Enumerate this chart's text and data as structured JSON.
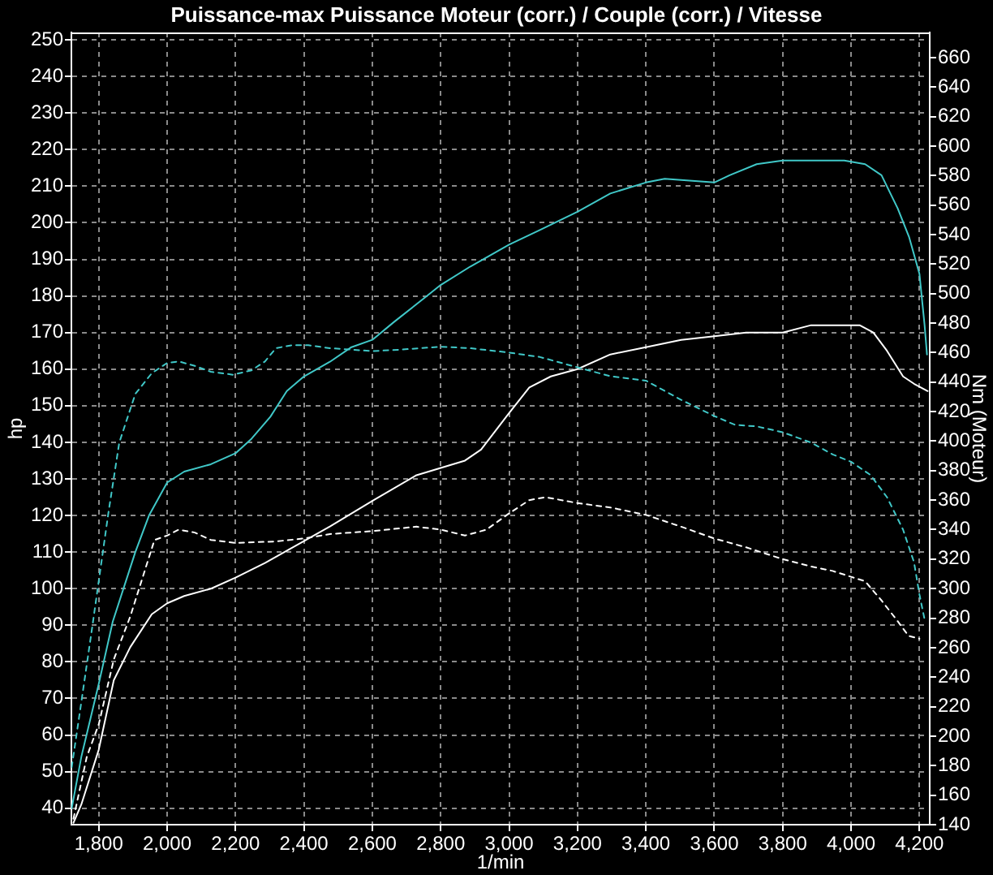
{
  "chart_data": {
    "type": "line",
    "title": "Puissance-max Puissance Moteur (corr.) / Couple (corr.) / Vitesse",
    "xlabel": "1/min",
    "ylabel": "hp",
    "y2label": "Nm (Moteur)",
    "xlim": [
      1720,
      4230
    ],
    "xticks": [
      {
        "value": 1800,
        "label": "1,800"
      },
      {
        "value": 2000,
        "label": "2,000"
      },
      {
        "value": 2200,
        "label": "2,200"
      },
      {
        "value": 2400,
        "label": "2,400"
      },
      {
        "value": 2600,
        "label": "2,600"
      },
      {
        "value": 2800,
        "label": "2,800"
      },
      {
        "value": 3000,
        "label": "3,000"
      },
      {
        "value": 3200,
        "label": "3,200"
      },
      {
        "value": 3400,
        "label": "3,400"
      },
      {
        "value": 3600,
        "label": "3,600"
      },
      {
        "value": 3800,
        "label": "3,800"
      },
      {
        "value": 4000,
        "label": "4,000"
      },
      {
        "value": 4200,
        "label": "4,200"
      }
    ],
    "ylim": [
      35.5,
      252
    ],
    "yticks": [
      40,
      50,
      60,
      70,
      80,
      90,
      100,
      110,
      120,
      130,
      140,
      150,
      160,
      170,
      180,
      190,
      200,
      210,
      220,
      230,
      240,
      250
    ],
    "y2lim": [
      140,
      677
    ],
    "y2ticks": [
      140,
      160,
      180,
      200,
      220,
      240,
      260,
      280,
      300,
      320,
      340,
      360,
      380,
      400,
      420,
      440,
      460,
      480,
      500,
      520,
      540,
      560,
      580,
      600,
      620,
      640,
      660
    ],
    "grid": true,
    "legend": false,
    "marker": "none",
    "series": [
      {
        "color": "#40c8c8",
        "line_style": "solid",
        "x": [
          1721,
          1749,
          1800,
          1841,
          1907,
          1947,
          2000,
          2050,
          2128,
          2200,
          2247,
          2302,
          2350,
          2400,
          2476,
          2539,
          2600,
          2665,
          2760,
          2800,
          2886,
          3000,
          3090,
          3200,
          3296,
          3400,
          3455,
          3600,
          3645,
          3724,
          3800,
          3980,
          4041,
          4089,
          4136,
          4170,
          4200,
          4215,
          4222
        ],
        "values": [
          40,
          54,
          74,
          91,
          110,
          120,
          129,
          132,
          134,
          137,
          141,
          147,
          154,
          158,
          162,
          166,
          168,
          173,
          180,
          183,
          188,
          194,
          198,
          203,
          208,
          211,
          212,
          211,
          213,
          216,
          217,
          217,
          216,
          213,
          204,
          196,
          186,
          172,
          164
        ]
      },
      {
        "color": "#40c8c8",
        "line_style": "dashed",
        "axis": "y2",
        "x": [
          1721,
          1749,
          1781,
          1828,
          1860,
          1907,
          1955,
          2000,
          2034,
          2081,
          2128,
          2192,
          2247,
          2286,
          2318,
          2365,
          2413,
          2476,
          2600,
          2681,
          2800,
          2886,
          3000,
          3090,
          3200,
          3296,
          3400,
          3503,
          3600,
          3661,
          3724,
          3800,
          3883,
          3946,
          4000,
          4057,
          4105,
          4152,
          4184,
          4200,
          4216
        ],
        "values": [
          179,
          223,
          274,
          351,
          399,
          432,
          446,
          453,
          454,
          451,
          447,
          445,
          448,
          454,
          463,
          465,
          465,
          463,
          461,
          462,
          464,
          463,
          460,
          457,
          450,
          444,
          441,
          428,
          417,
          411,
          410,
          406,
          399,
          391,
          386,
          377,
          362,
          340,
          318,
          296,
          278
        ]
      },
      {
        "color": "#ffffff",
        "line_style": "solid",
        "x": [
          1726,
          1749,
          1800,
          1844,
          1892,
          1955,
          2000,
          2050,
          2128,
          2200,
          2286,
          2400,
          2476,
          2600,
          2729,
          2800,
          2871,
          2918,
          3000,
          3059,
          3122,
          3200,
          3296,
          3400,
          3503,
          3600,
          3693,
          3800,
          3883,
          3946,
          4025,
          4065,
          4105,
          4152,
          4184,
          4224
        ],
        "values": [
          36,
          41,
          56,
          75,
          84,
          93,
          96,
          98,
          100,
          103,
          107,
          113,
          117,
          124,
          131,
          133,
          135,
          138,
          148,
          155,
          158,
          160,
          164,
          166,
          168,
          169,
          170,
          170,
          172,
          172,
          172,
          170,
          165,
          158,
          156,
          154
        ]
      },
      {
        "color": "#ffffff",
        "line_style": "dashed",
        "axis": "y2",
        "x": [
          1726,
          1765,
          1800,
          1844,
          1892,
          1963,
          2000,
          2034,
          2081,
          2128,
          2200,
          2318,
          2400,
          2476,
          2600,
          2729,
          2800,
          2871,
          2934,
          3000,
          3059,
          3106,
          3200,
          3296,
          3400,
          3503,
          3600,
          3693,
          3800,
          3883,
          3946,
          4000,
          4041,
          4089,
          4136,
          4168,
          4200
        ],
        "values": [
          144,
          186,
          208,
          252,
          281,
          333,
          336,
          340,
          338,
          333,
          331,
          332,
          334,
          337,
          339,
          342,
          340,
          336,
          340,
          351,
          360,
          362,
          358,
          355,
          350,
          342,
          334,
          328,
          320,
          315,
          312,
          308,
          305,
          292,
          278,
          268,
          266
        ]
      }
    ]
  }
}
